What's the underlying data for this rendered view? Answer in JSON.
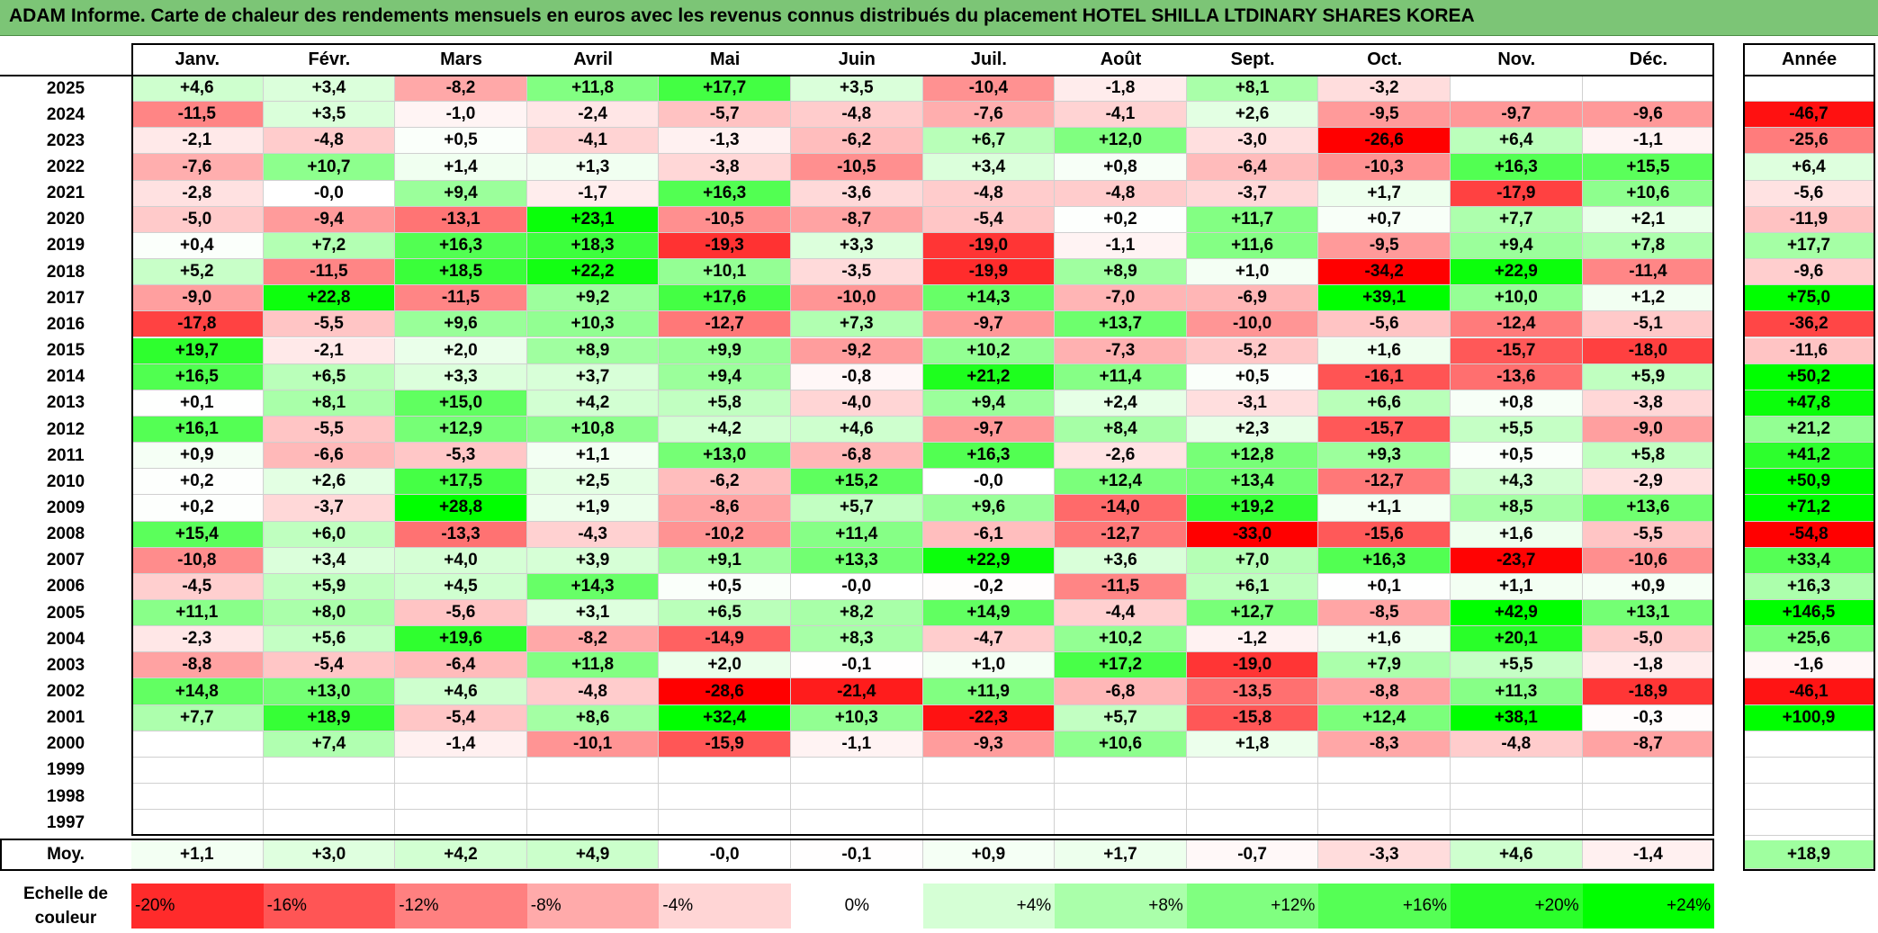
{
  "title": "ADAM Informe. Carte de chaleur des rendements mensuels en euros avec les revenus connus distribués du placement HOTEL SHILLA LTDINARY SHARES KOREA",
  "chart_data": {
    "type": "heatmap",
    "columns": [
      "Janv.",
      "Févr.",
      "Mars",
      "Avril",
      "Mai",
      "Juin",
      "Juil.",
      "Août",
      "Sept.",
      "Oct.",
      "Nov.",
      "Déc."
    ],
    "year_column_label": "Année",
    "average_label": "Moy.",
    "rows": [
      {
        "year": "2025",
        "values": [
          "+4,6",
          "+3,4",
          "-8,2",
          "+11,8",
          "+17,7",
          "+3,5",
          "-10,4",
          "-1,8",
          "+8,1",
          "-3,2",
          "",
          ""
        ],
        "annual": ""
      },
      {
        "year": "2024",
        "values": [
          "-11,5",
          "+3,5",
          "-1,0",
          "-2,4",
          "-5,7",
          "-4,8",
          "-7,6",
          "-4,1",
          "+2,6",
          "-9,5",
          "-9,7",
          "-9,6"
        ],
        "annual": "-46,7"
      },
      {
        "year": "2023",
        "values": [
          "-2,1",
          "-4,8",
          "+0,5",
          "-4,1",
          "-1,3",
          "-6,2",
          "+6,7",
          "+12,0",
          "-3,0",
          "-26,6",
          "+6,4",
          "-1,1"
        ],
        "annual": "-25,6"
      },
      {
        "year": "2022",
        "values": [
          "-7,6",
          "+10,7",
          "+1,4",
          "+1,3",
          "-3,8",
          "-10,5",
          "+3,4",
          "+0,8",
          "-6,4",
          "-10,3",
          "+16,3",
          "+15,5"
        ],
        "annual": "+6,4"
      },
      {
        "year": "2021",
        "values": [
          "-2,8",
          "-0,0",
          "+9,4",
          "-1,7",
          "+16,3",
          "-3,6",
          "-4,8",
          "-4,8",
          "-3,7",
          "+1,7",
          "-17,9",
          "+10,6"
        ],
        "annual": "-5,6"
      },
      {
        "year": "2020",
        "values": [
          "-5,0",
          "-9,4",
          "-13,1",
          "+23,1",
          "-10,5",
          "-8,7",
          "-5,4",
          "+0,2",
          "+11,7",
          "+0,7",
          "+7,7",
          "+2,1"
        ],
        "annual": "-11,9"
      },
      {
        "year": "2019",
        "values": [
          "+0,4",
          "+7,2",
          "+16,3",
          "+18,3",
          "-19,3",
          "+3,3",
          "-19,0",
          "-1,1",
          "+11,6",
          "-9,5",
          "+9,4",
          "+7,8"
        ],
        "annual": "+17,7"
      },
      {
        "year": "2018",
        "values": [
          "+5,2",
          "-11,5",
          "+18,5",
          "+22,2",
          "+10,1",
          "-3,5",
          "-19,9",
          "+8,9",
          "+1,0",
          "-34,2",
          "+22,9",
          "-11,4"
        ],
        "annual": "-9,6"
      },
      {
        "year": "2017",
        "values": [
          "-9,0",
          "+22,8",
          "-11,5",
          "+9,2",
          "+17,6",
          "-10,0",
          "+14,3",
          "-7,0",
          "-6,9",
          "+39,1",
          "+10,0",
          "+1,2"
        ],
        "annual": "+75,0"
      },
      {
        "year": "2016",
        "values": [
          "-17,8",
          "-5,5",
          "+9,6",
          "+10,3",
          "-12,7",
          "+7,3",
          "-9,7",
          "+13,7",
          "-10,0",
          "-5,6",
          "-12,4",
          "-5,1"
        ],
        "annual": "-36,2"
      },
      {
        "year": "2015",
        "values": [
          "+19,7",
          "-2,1",
          "+2,0",
          "+8,9",
          "+9,9",
          "-9,2",
          "+10,2",
          "-7,3",
          "-5,2",
          "+1,6",
          "-15,7",
          "-18,0"
        ],
        "annual": "-11,6"
      },
      {
        "year": "2014",
        "values": [
          "+16,5",
          "+6,5",
          "+3,3",
          "+3,7",
          "+9,4",
          "-0,8",
          "+21,2",
          "+11,4",
          "+0,5",
          "-16,1",
          "-13,6",
          "+5,9"
        ],
        "annual": "+50,2"
      },
      {
        "year": "2013",
        "values": [
          "+0,1",
          "+8,1",
          "+15,0",
          "+4,2",
          "+5,8",
          "-4,0",
          "+9,4",
          "+2,4",
          "-3,1",
          "+6,6",
          "+0,8",
          "-3,8"
        ],
        "annual": "+47,8"
      },
      {
        "year": "2012",
        "values": [
          "+16,1",
          "-5,5",
          "+12,9",
          "+10,8",
          "+4,2",
          "+4,6",
          "-9,7",
          "+8,4",
          "+2,3",
          "-15,7",
          "+5,5",
          "-9,0"
        ],
        "annual": "+21,2"
      },
      {
        "year": "2011",
        "values": [
          "+0,9",
          "-6,6",
          "-5,3",
          "+1,1",
          "+13,0",
          "-6,8",
          "+16,3",
          "-2,6",
          "+12,8",
          "+9,3",
          "+0,5",
          "+5,8"
        ],
        "annual": "+41,2"
      },
      {
        "year": "2010",
        "values": [
          "+0,2",
          "+2,6",
          "+17,5",
          "+2,5",
          "-6,2",
          "+15,2",
          "-0,0",
          "+12,4",
          "+13,4",
          "-12,7",
          "+4,3",
          "-2,9"
        ],
        "annual": "+50,9"
      },
      {
        "year": "2009",
        "values": [
          "+0,2",
          "-3,7",
          "+28,8",
          "+1,9",
          "-8,6",
          "+5,7",
          "+9,6",
          "-14,0",
          "+19,2",
          "+1,1",
          "+8,5",
          "+13,6"
        ],
        "annual": "+71,2"
      },
      {
        "year": "2008",
        "values": [
          "+15,4",
          "+6,0",
          "-13,3",
          "-4,3",
          "-10,2",
          "+11,4",
          "-6,1",
          "-12,7",
          "-33,0",
          "-15,6",
          "+1,6",
          "-5,5"
        ],
        "annual": "-54,8"
      },
      {
        "year": "2007",
        "values": [
          "-10,8",
          "+3,4",
          "+4,0",
          "+3,9",
          "+9,1",
          "+13,3",
          "+22,9",
          "+3,6",
          "+7,0",
          "+16,3",
          "-23,7",
          "-10,6"
        ],
        "annual": "+33,4"
      },
      {
        "year": "2006",
        "values": [
          "-4,5",
          "+5,9",
          "+4,5",
          "+14,3",
          "+0,5",
          "-0,0",
          "-0,2",
          "-11,5",
          "+6,1",
          "+0,1",
          "+1,1",
          "+0,9"
        ],
        "annual": "+16,3"
      },
      {
        "year": "2005",
        "values": [
          "+11,1",
          "+8,0",
          "-5,6",
          "+3,1",
          "+6,5",
          "+8,2",
          "+14,9",
          "-4,4",
          "+12,7",
          "-8,5",
          "+42,9",
          "+13,1"
        ],
        "annual": "+146,5"
      },
      {
        "year": "2004",
        "values": [
          "-2,3",
          "+5,6",
          "+19,6",
          "-8,2",
          "-14,9",
          "+8,3",
          "-4,7",
          "+10,2",
          "-1,2",
          "+1,6",
          "+20,1",
          "-5,0"
        ],
        "annual": "+25,6"
      },
      {
        "year": "2003",
        "values": [
          "-8,8",
          "-5,4",
          "-6,4",
          "+11,8",
          "+2,0",
          "-0,1",
          "+1,0",
          "+17,2",
          "-19,0",
          "+7,9",
          "+5,5",
          "-1,8"
        ],
        "annual": "-1,6"
      },
      {
        "year": "2002",
        "values": [
          "+14,8",
          "+13,0",
          "+4,6",
          "-4,8",
          "-28,6",
          "-21,4",
          "+11,9",
          "-6,8",
          "-13,5",
          "-8,8",
          "+11,3",
          "-18,9"
        ],
        "annual": "-46,1"
      },
      {
        "year": "2001",
        "values": [
          "+7,7",
          "+18,9",
          "-5,4",
          "+8,6",
          "+32,4",
          "+10,3",
          "-22,3",
          "+5,7",
          "-15,8",
          "+12,4",
          "+38,1",
          "-0,3"
        ],
        "annual": "+100,9"
      },
      {
        "year": "2000",
        "values": [
          "",
          "+7,4",
          "-1,4",
          "-10,1",
          "-15,9",
          "-1,1",
          "-9,3",
          "+10,6",
          "+1,8",
          "-8,3",
          "-4,8",
          "-8,7"
        ],
        "annual": ""
      },
      {
        "year": "1999",
        "values": [
          "",
          "",
          "",
          "",
          "",
          "",
          "",
          "",
          "",
          "",
          "",
          ""
        ],
        "annual": ""
      },
      {
        "year": "1998",
        "values": [
          "",
          "",
          "",
          "",
          "",
          "",
          "",
          "",
          "",
          "",
          "",
          ""
        ],
        "annual": ""
      },
      {
        "year": "1997",
        "values": [
          "",
          "",
          "",
          "",
          "",
          "",
          "",
          "",
          "",
          "",
          "",
          ""
        ],
        "annual": ""
      }
    ],
    "average": {
      "values": [
        "+1,1",
        "+3,0",
        "+4,2",
        "+4,9",
        "-0,0",
        "-0,1",
        "+0,9",
        "+1,7",
        "-0,7",
        "-3,3",
        "+4,6",
        "-1,4"
      ],
      "annual": "+18,9"
    },
    "color_scale": {
      "label_line1": "Echelle de",
      "label_line2": "couleur",
      "steps": [
        "-20%",
        "-16%",
        "-12%",
        "-8%",
        "-4%",
        "0%",
        "+4%",
        "+8%",
        "+12%",
        "+16%",
        "+20%",
        "+24%"
      ]
    }
  }
}
